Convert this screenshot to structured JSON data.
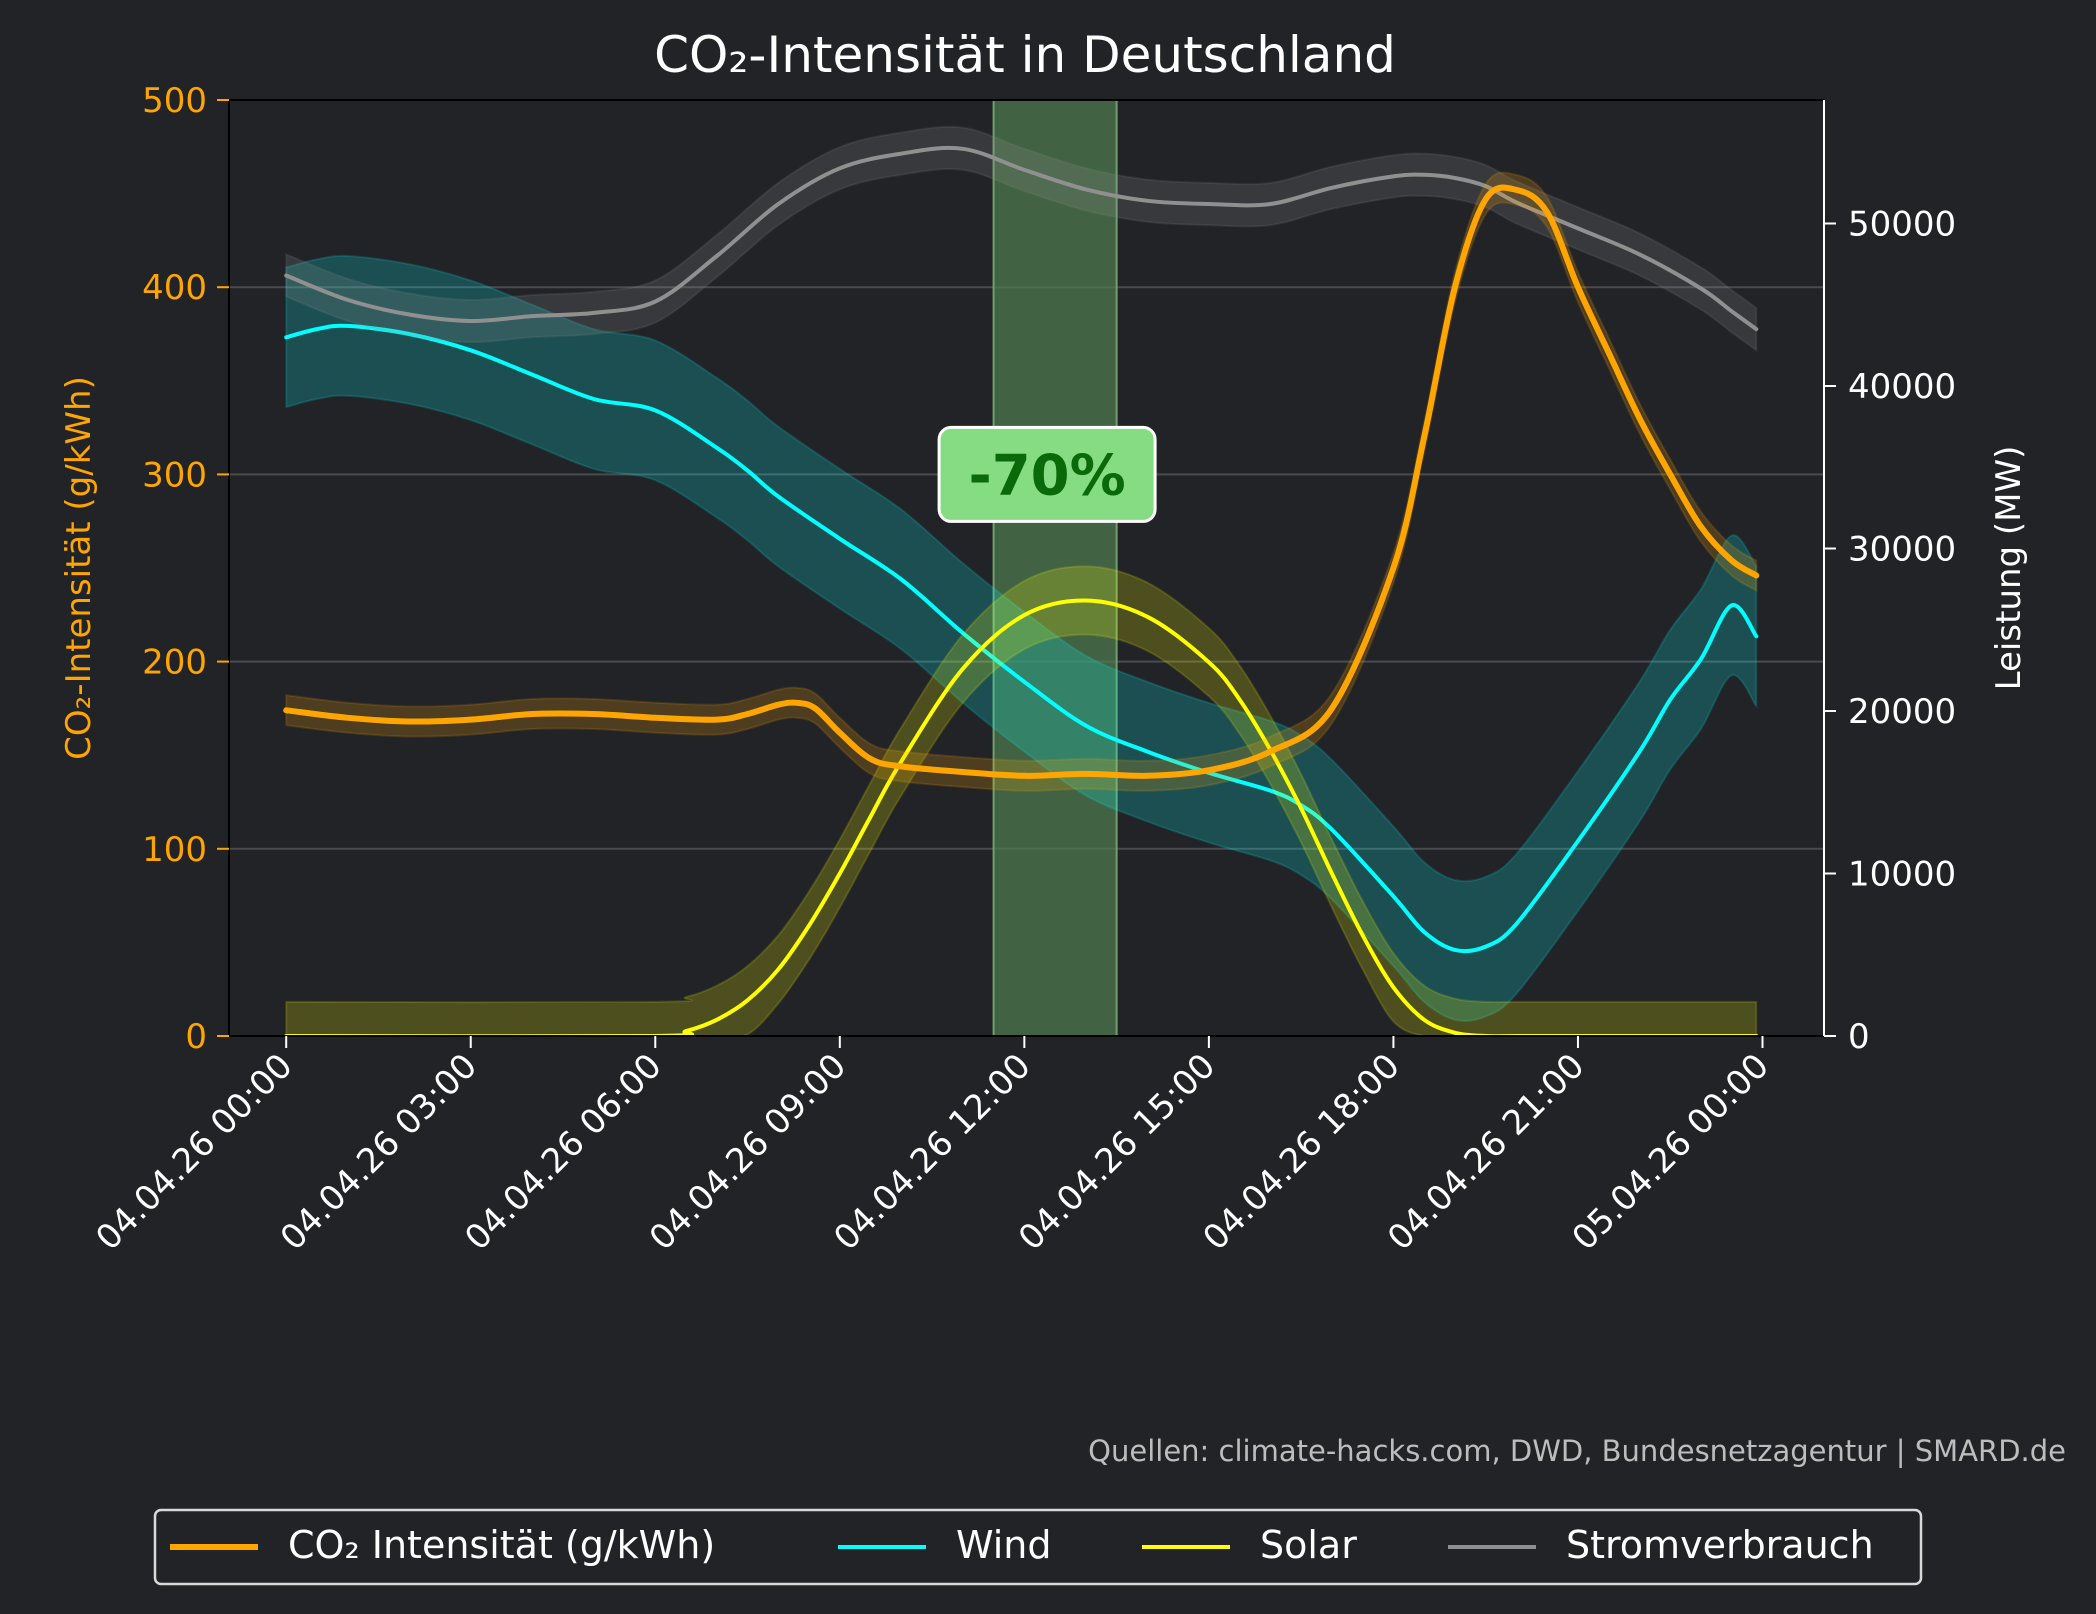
{
  "chart_data": {
    "type": "line",
    "title": "CO₂-Intensität in Deutschland",
    "ylabel_left": "CO₂-Intensität (g/kWh)",
    "ylabel_right": "Leistung (MW)",
    "xlabel": "",
    "x_ticks": [
      0,
      3,
      6,
      9,
      12,
      15,
      18,
      21,
      24
    ],
    "x_tick_labels": [
      "04.04.26 00:00",
      "04.04.26 03:00",
      "04.04.26 06:00",
      "04.04.26 09:00",
      "04.04.26 12:00",
      "04.04.26 15:00",
      "04.04.26 18:00",
      "04.04.26 21:00",
      "05.04.26 00:00"
    ],
    "xlim": [
      -0.93,
      25.0
    ],
    "ylim_left": [
      0,
      500
    ],
    "ylim_right": [
      0,
      57600
    ],
    "y_ticks_left": [
      0,
      100,
      200,
      300,
      400,
      500
    ],
    "y_ticks_right": [
      0,
      10000,
      20000,
      30000,
      40000,
      50000
    ],
    "grid": "horizontal",
    "highlight_band": {
      "x_start": 11.5,
      "x_end": 13.5,
      "label": "-70%",
      "label_x": 12.5,
      "label_y": 300
    },
    "series": [
      {
        "name": "CO₂ Intensität (g/kWh)",
        "axis": "left",
        "color": "#ffa500",
        "band": 8,
        "x": [
          0,
          1,
          2,
          3,
          4,
          5,
          6,
          7,
          7.5,
          8,
          8.3,
          8.6,
          9,
          9.5,
          10,
          11,
          12,
          13,
          14,
          15,
          16,
          17,
          18,
          18.5,
          19,
          19.5,
          20,
          20.5,
          21,
          21.5,
          22,
          22.5,
          23,
          23.5,
          23.9
        ],
        "y": [
          174,
          170,
          168,
          169,
          172,
          172,
          170,
          169,
          172,
          177,
          178,
          175,
          162,
          148,
          144,
          141,
          139,
          140,
          139,
          142,
          152,
          175,
          250,
          320,
          400,
          447,
          452,
          440,
          400,
          365,
          330,
          300,
          272,
          254,
          246
        ]
      },
      {
        "name": "Wind",
        "axis": "right",
        "color": "#00ffff",
        "band": 4300,
        "x": [
          0,
          0.5,
          1,
          2,
          3,
          4,
          5,
          6,
          7,
          7.5,
          8,
          9,
          10,
          11,
          12,
          13,
          14,
          15,
          16,
          16.5,
          17,
          18,
          18.5,
          19,
          19.5,
          20,
          21,
          22,
          22.5,
          23,
          23.5,
          23.9
        ],
        "y": [
          43000,
          43500,
          43700,
          43200,
          42200,
          40700,
          39200,
          38500,
          36200,
          34800,
          33200,
          30600,
          28100,
          24800,
          21800,
          19100,
          17500,
          16200,
          15100,
          14200,
          12700,
          8600,
          6400,
          5300,
          5500,
          6900,
          12000,
          17500,
          20700,
          23200,
          26500,
          24600
        ]
      },
      {
        "name": "Solar",
        "axis": "right",
        "color": "#ffff00",
        "band": 2100,
        "x": [
          0,
          6,
          6.5,
          7,
          7.5,
          8,
          8.5,
          9,
          9.5,
          10,
          11,
          12,
          13,
          14,
          15,
          15.5,
          16,
          16.5,
          17,
          17.5,
          18,
          18.5,
          19,
          19.5,
          20,
          21,
          23.9
        ],
        "y": [
          0,
          0,
          300,
          1000,
          2200,
          4100,
          6800,
          10000,
          13500,
          16900,
          22600,
          25900,
          26800,
          25800,
          23000,
          20700,
          17600,
          14000,
          10000,
          6200,
          3000,
          1000,
          200,
          0,
          0,
          0,
          0
        ]
      },
      {
        "name": "Stromverbrauch",
        "axis": "right",
        "color": "#909090",
        "band": 1300,
        "x": [
          0,
          1,
          2,
          3,
          4,
          5,
          6,
          7,
          8,
          9,
          10,
          11,
          12,
          13,
          14,
          15,
          16,
          17,
          18,
          18.5,
          19,
          19.5,
          20,
          21,
          22,
          23,
          23.5,
          23.9
        ],
        "y": [
          46800,
          45300,
          44400,
          44000,
          44300,
          44500,
          45200,
          48000,
          51200,
          53400,
          54300,
          54600,
          53300,
          52100,
          51400,
          51200,
          51200,
          52200,
          52900,
          53000,
          52800,
          52300,
          51300,
          49700,
          48100,
          46000,
          44600,
          43500
        ]
      }
    ]
  },
  "source_text": "Quellen: climate-hacks.com, DWD, Bundesnetzagentur | SMARD.de"
}
